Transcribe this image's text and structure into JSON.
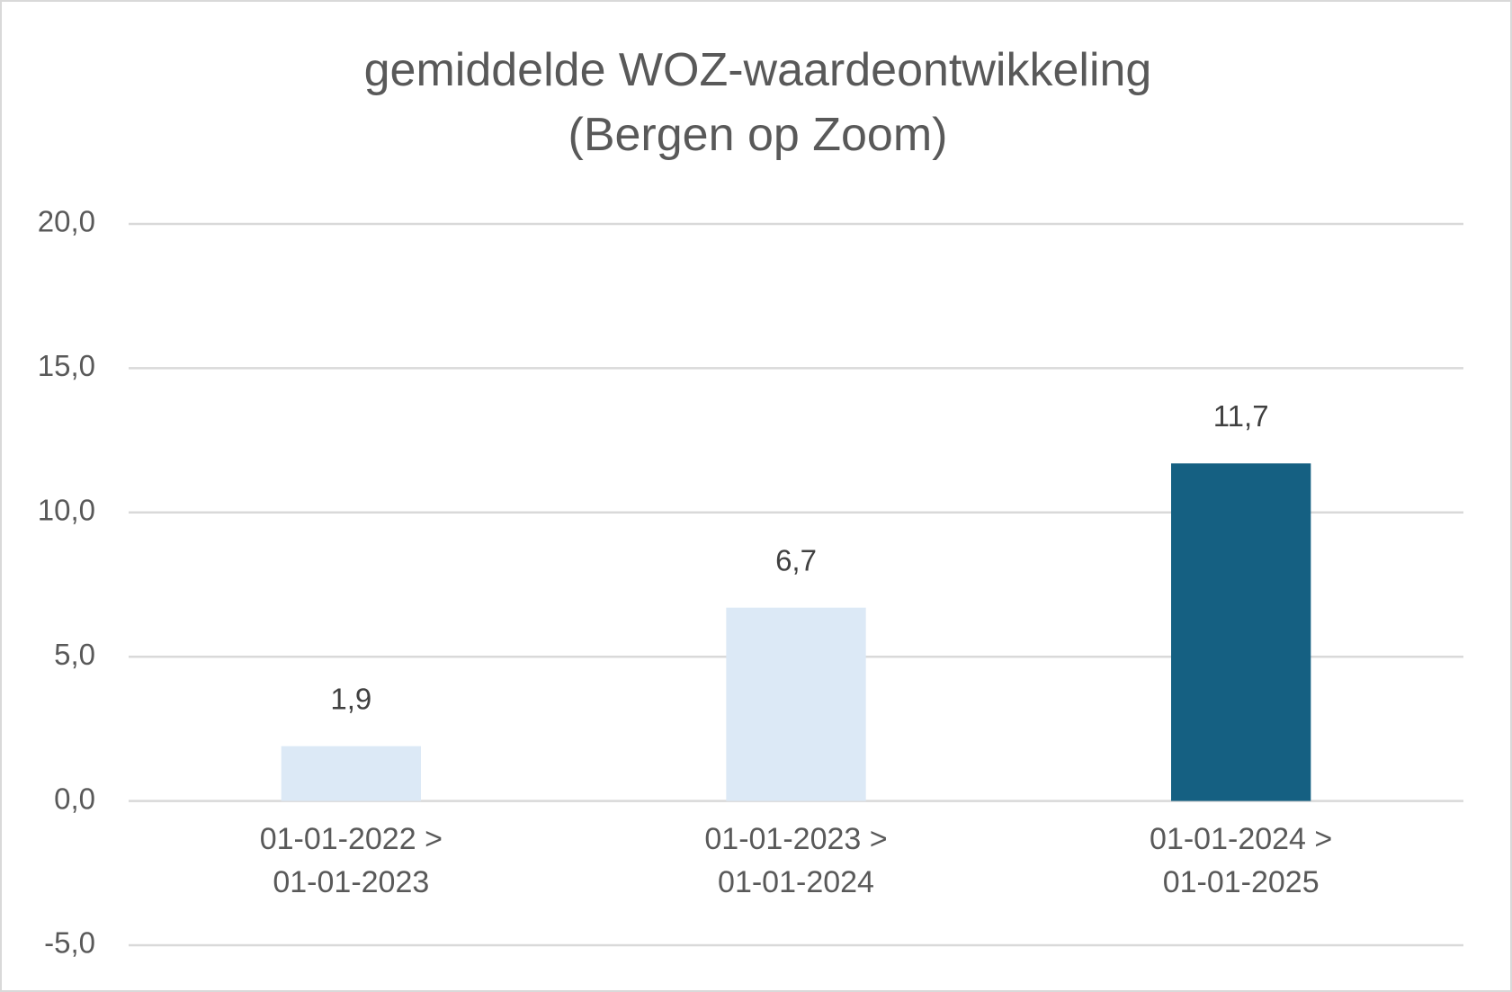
{
  "chart_data": {
    "type": "bar",
    "title": "gemiddelde WOZ-waardeontwikkeling\n(Bergen op Zoom)",
    "categories": [
      "01-01-2022 >\n01-01-2023",
      "01-01-2023 >\n01-01-2024",
      "01-01-2024 >\n01-01-2025"
    ],
    "values": [
      1.9,
      6.7,
      11.7
    ],
    "value_labels": [
      "1,9",
      "6,7",
      "11,7"
    ],
    "colors": [
      "#dce9f6",
      "#dce9f6",
      "#156082"
    ],
    "ylim": [
      -5,
      20
    ],
    "yticks": [
      {
        "value": -5,
        "label": "-5,0"
      },
      {
        "value": 0,
        "label": "0,0"
      },
      {
        "value": 5,
        "label": "5,0"
      },
      {
        "value": 10,
        "label": "10,0"
      },
      {
        "value": 15,
        "label": "15,0"
      },
      {
        "value": 20,
        "label": "20,0"
      }
    ],
    "grid": true
  }
}
